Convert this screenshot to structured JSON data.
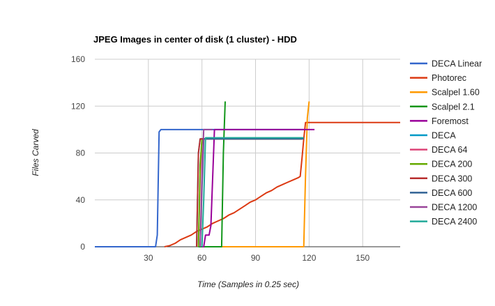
{
  "chart_data": {
    "type": "line",
    "title": "JPEG Images in center of disk (1 cluster) - HDD",
    "xlabel": "Time (Samples in 0.25 sec)",
    "ylabel": "Files Carved",
    "xlim": [
      0,
      171
    ],
    "ylim": [
      0,
      160
    ],
    "xticks": [
      30,
      60,
      90,
      120,
      150
    ],
    "yticks": [
      0,
      40,
      80,
      120,
      160
    ],
    "grid": true,
    "legend_position": "right",
    "series": [
      {
        "name": "DECA Linear",
        "color": "#3366cc",
        "points": [
          [
            0,
            0
          ],
          [
            34,
            0
          ],
          [
            35,
            10
          ],
          [
            36,
            98
          ],
          [
            37,
            100
          ],
          [
            117,
            100
          ]
        ]
      },
      {
        "name": "Photorec",
        "color": "#dc3912",
        "points": [
          [
            39,
            0
          ],
          [
            42,
            1
          ],
          [
            45,
            3
          ],
          [
            48,
            6
          ],
          [
            51,
            8
          ],
          [
            54,
            10
          ],
          [
            57,
            13
          ],
          [
            60,
            15
          ],
          [
            63,
            17
          ],
          [
            66,
            20
          ],
          [
            69,
            22
          ],
          [
            72,
            24
          ],
          [
            75,
            27
          ],
          [
            78,
            29
          ],
          [
            81,
            32
          ],
          [
            84,
            35
          ],
          [
            87,
            38
          ],
          [
            90,
            40
          ],
          [
            93,
            43
          ],
          [
            96,
            46
          ],
          [
            99,
            48
          ],
          [
            102,
            51
          ],
          [
            105,
            53
          ],
          [
            108,
            55
          ],
          [
            111,
            57
          ],
          [
            114,
            59
          ],
          [
            115,
            60
          ],
          [
            116,
            75
          ],
          [
            117,
            92
          ],
          [
            118,
            106
          ],
          [
            171,
            106
          ]
        ]
      },
      {
        "name": "Scalpel 1.60",
        "color": "#ff9900",
        "points": [
          [
            71,
            0
          ],
          [
            117,
            0
          ],
          [
            118,
            60
          ],
          [
            119,
            110
          ],
          [
            120,
            124
          ]
        ]
      },
      {
        "name": "Scalpel 2.1",
        "color": "#109618",
        "points": [
          [
            58,
            0
          ],
          [
            71,
            0
          ],
          [
            72,
            80
          ],
          [
            73,
            124
          ]
        ]
      },
      {
        "name": "Foremost",
        "color": "#990099",
        "points": [
          [
            60,
            0
          ],
          [
            61,
            0
          ],
          [
            62,
            10
          ],
          [
            64,
            10
          ],
          [
            65,
            18
          ],
          [
            66,
            60
          ],
          [
            67,
            100
          ],
          [
            123,
            100
          ]
        ]
      },
      {
        "name": "DECA",
        "color": "#0099c6",
        "points": [
          [
            57,
            0
          ],
          [
            58,
            80
          ],
          [
            59,
            92
          ],
          [
            116,
            92
          ]
        ]
      },
      {
        "name": "DECA 64",
        "color": "#dd4477",
        "points": [
          [
            58,
            0
          ],
          [
            59,
            60
          ],
          [
            60,
            92
          ],
          [
            116,
            92
          ]
        ]
      },
      {
        "name": "DECA 200",
        "color": "#66aa00",
        "points": [
          [
            58,
            0
          ],
          [
            59,
            70
          ],
          [
            60,
            92
          ],
          [
            116,
            92
          ]
        ]
      },
      {
        "name": "DECA 300",
        "color": "#b82e2e",
        "points": [
          [
            57,
            0
          ],
          [
            58,
            80
          ],
          [
            59,
            92
          ],
          [
            116,
            92
          ]
        ]
      },
      {
        "name": "DECA 600",
        "color": "#316395",
        "points": [
          [
            59,
            0
          ],
          [
            60,
            50
          ],
          [
            61,
            92
          ],
          [
            117,
            92
          ]
        ]
      },
      {
        "name": "DECA 1200",
        "color": "#994499",
        "points": [
          [
            59,
            0
          ],
          [
            60,
            60
          ],
          [
            61,
            100
          ],
          [
            66,
            100
          ]
        ]
      },
      {
        "name": "DECA 2400",
        "color": "#22aa99",
        "points": [
          [
            60,
            0
          ],
          [
            61,
            40
          ],
          [
            62,
            93
          ],
          [
            117,
            93
          ]
        ]
      }
    ]
  }
}
